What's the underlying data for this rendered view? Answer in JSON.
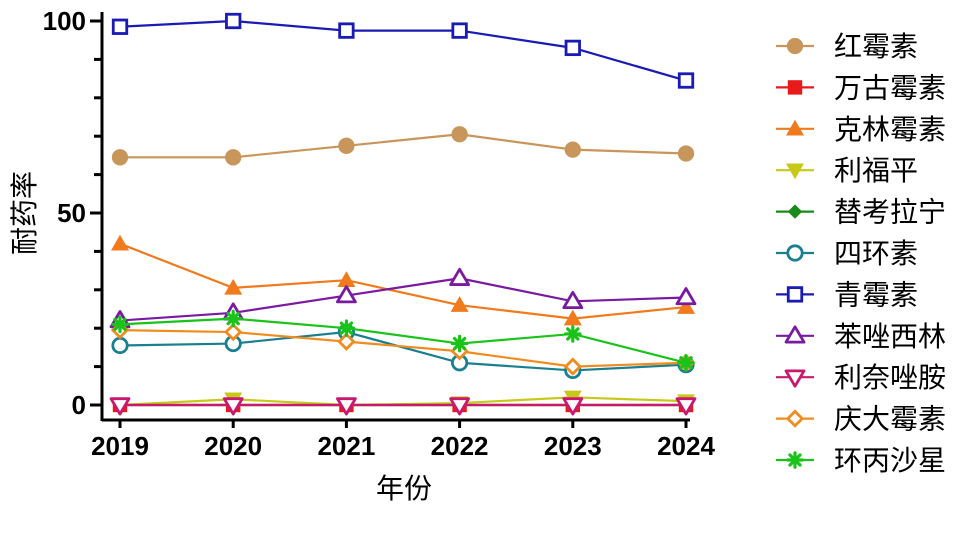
{
  "chart_data": {
    "type": "line",
    "title": "",
    "xlabel": "年份",
    "ylabel": "耐药率",
    "x": [
      "2019",
      "2020",
      "2021",
      "2022",
      "2023",
      "2024"
    ],
    "ylim": [
      0,
      100
    ],
    "yticks": [
      0,
      50,
      100
    ],
    "grid": false,
    "legend_position": "right",
    "series": [
      {
        "name": "红霉素",
        "color": "#c8965a",
        "marker": "circle-filled",
        "values": [
          64.5,
          64.5,
          67.5,
          70.5,
          66.5,
          65.5
        ]
      },
      {
        "name": "万古霉素",
        "color": "#e8191b",
        "marker": "square-filled",
        "values": [
          0,
          0,
          0,
          0,
          0,
          0
        ]
      },
      {
        "name": "克林霉素",
        "color": "#f07a1c",
        "marker": "triangle-up-filled",
        "values": [
          42,
          30.5,
          32.5,
          26,
          22.5,
          25.5
        ]
      },
      {
        "name": "利福平",
        "color": "#c8c819",
        "marker": "triangle-down-filled",
        "values": [
          0,
          1.5,
          0,
          0.5,
          2,
          1
        ]
      },
      {
        "name": "替考拉宁",
        "color": "#1a8a1a",
        "marker": "diamond-filled",
        "values": [
          0,
          0,
          0,
          0,
          0,
          0
        ]
      },
      {
        "name": "四环素",
        "color": "#1a7f8f",
        "marker": "circle-open",
        "values": [
          15.5,
          16,
          19,
          11,
          9,
          10.5
        ]
      },
      {
        "name": "青霉素",
        "color": "#1a1ab4",
        "marker": "square-open",
        "values": [
          98.5,
          100,
          97.5,
          97.5,
          93,
          84.5
        ]
      },
      {
        "name": "苯唑西林",
        "color": "#7a1aa0",
        "marker": "triangle-up-open",
        "values": [
          22,
          24,
          28.5,
          33,
          27,
          28
        ]
      },
      {
        "name": "利奈唑胺",
        "color": "#c8196e",
        "marker": "triangle-down-open",
        "values": [
          0,
          0,
          0,
          0,
          0,
          0
        ]
      },
      {
        "name": "庆大霉素",
        "color": "#f08c1e",
        "marker": "diamond-open",
        "values": [
          19.5,
          19,
          16.5,
          14,
          10,
          11
        ]
      },
      {
        "name": "环丙沙星",
        "color": "#19c319",
        "marker": "asterisk",
        "values": [
          21,
          22.5,
          20,
          16,
          18.5,
          11
        ]
      }
    ]
  }
}
